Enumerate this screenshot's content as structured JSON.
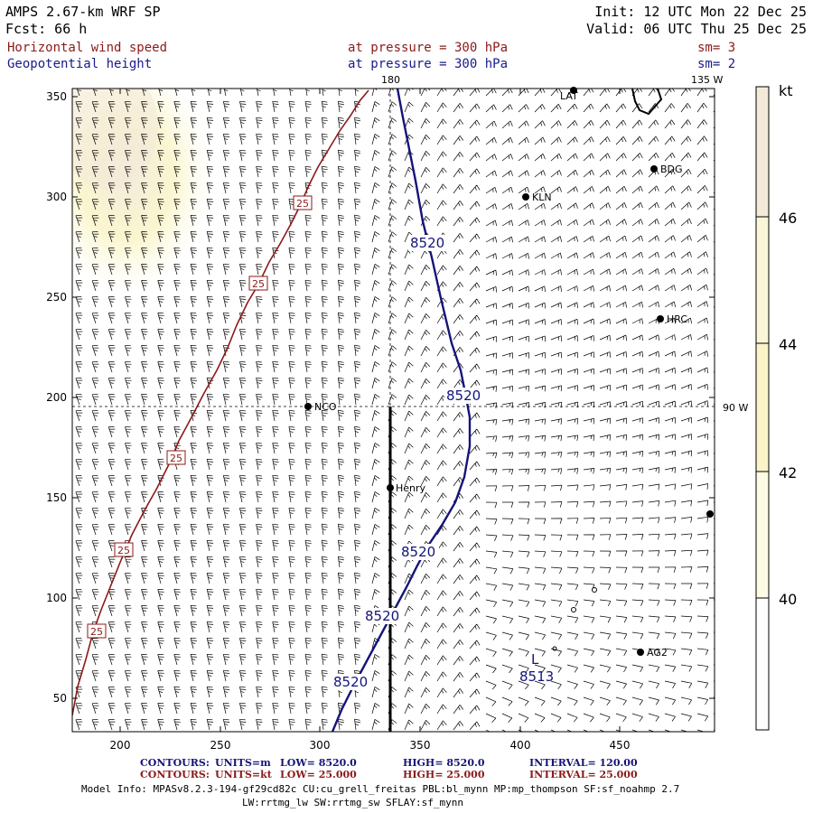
{
  "header": {
    "model": "AMPS 2.67-km WRF SP",
    "forecast": "Fcst:   66 h",
    "init": "Init: 12 UTC Mon 22 Dec 25",
    "valid": "Valid: 06 UTC Thu 25 Dec 25",
    "field1": {
      "name": "Horizontal wind speed",
      "level": "at pressure =  300 hPa",
      "smooth": "sm= 3",
      "color": "#8b1a1a"
    },
    "field2": {
      "name": "Geopotential height",
      "level": "at pressure =  300 hPa",
      "smooth": "sm= 2",
      "color": "#1a1a8b"
    }
  },
  "map": {
    "x_ticks": [
      "200",
      "250",
      "300",
      "350",
      "400",
      "450"
    ],
    "y_ticks": [
      "350",
      "300",
      "250",
      "200",
      "150",
      "100",
      "50"
    ],
    "meridian_label": "180",
    "lon_label_top": "135 W",
    "lon_label_right": "90 W",
    "stations": [
      "LAT",
      "BDG",
      "KLN",
      "HRC",
      "NCO",
      "Henry",
      "AG2"
    ],
    "height_contour_label": "8520",
    "height_labels": [
      "8520",
      "8520",
      "8520",
      "8520",
      "8520"
    ],
    "low_label": "L",
    "low_value": "8513",
    "wind_contour_label": "25"
  },
  "colorbar": {
    "unit": "kt",
    "labels": [
      "46",
      "44",
      "42",
      "40"
    ],
    "colors": [
      "#fefefe",
      "#fdfbe3",
      "#faf4c8",
      "#f3ead9"
    ]
  },
  "footer": {
    "c1_key": "CONTOURS:",
    "c1_units": "UNITS=m",
    "c1_low": "LOW=   8520.0",
    "c1_high": "HIGH=   8520.0",
    "c1_int": "INTERVAL=    120.00",
    "c2_key": "CONTOURS:",
    "c2_units": "UNITS=kt",
    "c2_low": "LOW=  25.000",
    "c2_high": "HIGH=  25.000",
    "c2_int": "INTERVAL=    25.000",
    "info1": "Model Info: MPASv8.2.3-194-gf29cd82c CU:cu_grell_freitas PBL:bl_mynn MP:mp_thompson SF:sf_noahmp 2.7",
    "info2": "LW:rrtmg_lw SW:rrtmg_sw SFLAY:sf_mynn"
  }
}
